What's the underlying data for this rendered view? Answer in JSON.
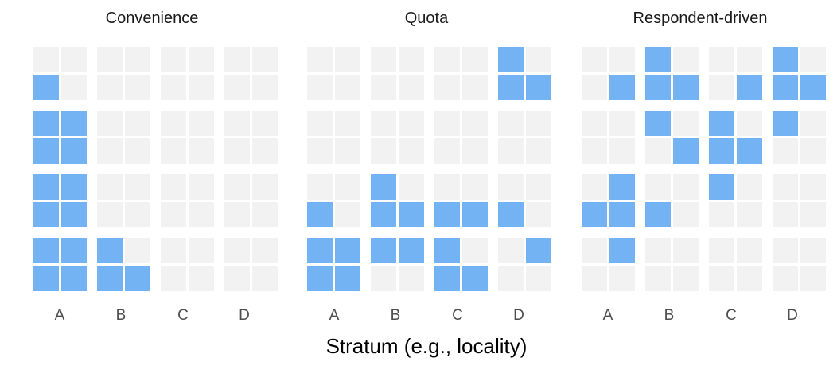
{
  "panels": [
    {
      "title": "Convenience",
      "filled": [
        [
          1,
          0
        ],
        [
          2,
          0
        ],
        [
          2,
          1
        ],
        [
          3,
          0
        ],
        [
          3,
          1
        ],
        [
          4,
          0
        ],
        [
          4,
          1
        ],
        [
          5,
          0
        ],
        [
          5,
          1
        ],
        [
          6,
          0
        ],
        [
          6,
          1
        ],
        [
          6,
          2
        ],
        [
          7,
          0
        ],
        [
          7,
          1
        ],
        [
          7,
          2
        ],
        [
          7,
          3
        ]
      ]
    },
    {
      "title": "Quota",
      "filled": [
        [
          0,
          6
        ],
        [
          1,
          6
        ],
        [
          1,
          7
        ],
        [
          4,
          2
        ],
        [
          5,
          0
        ],
        [
          5,
          2
        ],
        [
          5,
          3
        ],
        [
          5,
          4
        ],
        [
          5,
          5
        ],
        [
          5,
          6
        ],
        [
          6,
          0
        ],
        [
          6,
          1
        ],
        [
          6,
          2
        ],
        [
          6,
          3
        ],
        [
          6,
          4
        ],
        [
          6,
          7
        ],
        [
          7,
          0
        ],
        [
          7,
          1
        ],
        [
          7,
          4
        ],
        [
          7,
          5
        ]
      ]
    },
    {
      "title": "Respondent-driven",
      "filled": [
        [
          0,
          2
        ],
        [
          0,
          6
        ],
        [
          1,
          1
        ],
        [
          1,
          2
        ],
        [
          1,
          3
        ],
        [
          1,
          5
        ],
        [
          1,
          6
        ],
        [
          1,
          7
        ],
        [
          2,
          2
        ],
        [
          2,
          4
        ],
        [
          2,
          6
        ],
        [
          3,
          3
        ],
        [
          3,
          4
        ],
        [
          3,
          5
        ],
        [
          4,
          1
        ],
        [
          4,
          4
        ],
        [
          5,
          0
        ],
        [
          5,
          1
        ],
        [
          5,
          2
        ],
        [
          6,
          1
        ]
      ]
    }
  ],
  "strata": [
    "A",
    "B",
    "C",
    "D"
  ],
  "x_axis_title": "Stratum (e.g., locality)",
  "grid": {
    "rows": 8,
    "cols": 8,
    "row_blocks": 4,
    "col_blocks": 4
  },
  "colors": {
    "empty_cell": "#f2f2f2",
    "filled_cell": "#74b3f3",
    "panel_title": "#1a1a1a",
    "tick_label": "#4d4d4d",
    "axis_title": "#000000"
  }
}
